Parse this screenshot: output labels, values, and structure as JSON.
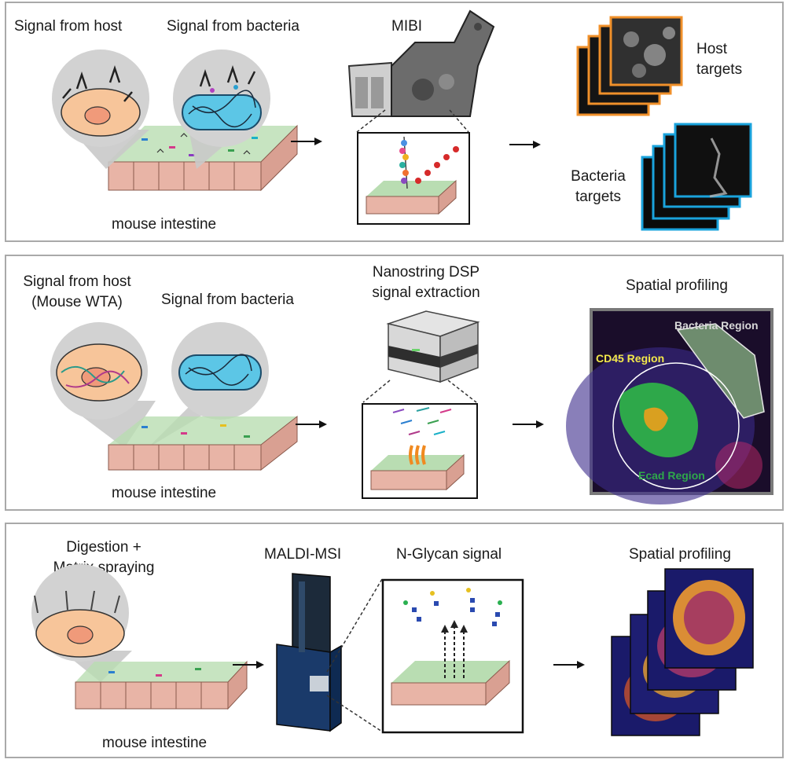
{
  "panel1": {
    "host_label": "Signal from host",
    "bacteria_label": "Signal from bacteria",
    "tissue_label": "mouse intestine",
    "instrument_label": "MIBI",
    "host_targets_label": "Host\ntargets",
    "bacteria_targets_label": "Bacteria\ntargets",
    "colors": {
      "host_frame": "#f0902a",
      "bacteria_frame": "#1aa3dc"
    }
  },
  "panel2": {
    "host_label": "Signal from host\n(Mouse WTA)",
    "bacteria_label": "Signal from bacteria",
    "tissue_label": "mouse intestine",
    "instrument_label": "Nanostring DSP\nsignal extraction",
    "profiling_label": "Spatial profiling",
    "regions": {
      "bacteria": "Bacteria Region",
      "cd45": "CD45 Region",
      "ecad": "Ecad Region"
    },
    "colors": {
      "bacteria_region": "#d8d8d8",
      "cd45_region": "#f3e84a",
      "ecad_region": "#2ea84a"
    }
  },
  "panel3": {
    "prep_label": "Digestion +\nMatrix spraying",
    "instrument_label": "MALDI-MSI",
    "glycan_label": "N-Glycan signal",
    "profiling_label": "Spatial profiling",
    "tissue_label": "mouse intestine"
  }
}
